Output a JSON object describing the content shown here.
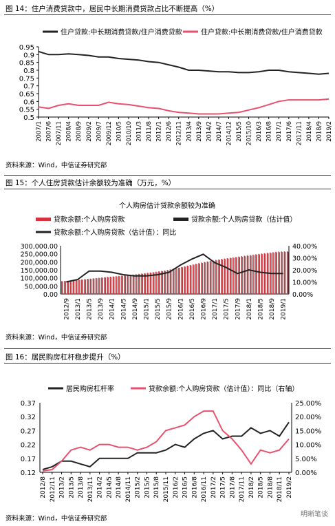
{
  "chart_data": [
    {
      "type": "line",
      "title": "图 14：住户消费贷款中，居民中长期消费贷款占比不断提高（%）",
      "source": "资料来源：Wind，中信证券研究部",
      "x": [
        "2007/1",
        "2007/6",
        "2007/11",
        "2008/4",
        "2008/9",
        "2009/2",
        "2009/7",
        "2009/12",
        "2010/5",
        "2010/10",
        "2011/3",
        "2011/8",
        "2012/1",
        "2012/6",
        "2012/11",
        "2013/4",
        "2013/9",
        "2014/2",
        "2014/7",
        "2014/12",
        "2015/5",
        "2015/10",
        "2016/3",
        "2016/8",
        "2017/1",
        "2017/6",
        "2017/11",
        "2018/4",
        "2018/9",
        "2019/2"
      ],
      "ylim": [
        0.5,
        0.95
      ],
      "yticks": [
        0.5,
        0.55,
        0.6,
        0.65,
        0.7,
        0.75,
        0.8,
        0.85,
        0.9,
        0.95
      ],
      "series": [
        {
          "name": "住户贷款:中长期消费贷款/住户消费贷款",
          "color": "#222222",
          "values": [
            0.92,
            0.9,
            0.9,
            0.905,
            0.9,
            0.895,
            0.885,
            0.885,
            0.875,
            0.87,
            0.865,
            0.855,
            0.85,
            0.835,
            0.82,
            0.8,
            0.8,
            0.795,
            0.79,
            0.79,
            0.785,
            0.785,
            0.79,
            0.8,
            0.8,
            0.79,
            0.785,
            0.78,
            0.775,
            0.78
          ]
        },
        {
          "name": "住户贷款:中长期消费贷款/住户消费贷款",
          "color": "#e8506e",
          "values": [
            0.565,
            0.555,
            0.575,
            0.585,
            0.575,
            0.575,
            0.575,
            0.595,
            0.585,
            0.58,
            0.57,
            0.56,
            0.555,
            0.54,
            0.53,
            0.525,
            0.52,
            0.52,
            0.52,
            0.525,
            0.53,
            0.545,
            0.56,
            0.58,
            0.6,
            0.61,
            0.61,
            0.61,
            0.61,
            0.615
          ]
        }
      ]
    },
    {
      "type": "bar",
      "title": "图 15：个人住房贷款估计余额较为准确（万元，%）",
      "subtitle": "个人购房估计贷款余额较为准确",
      "source": "资料来源：Wind，中信证券研究部",
      "categories": [
        "2012/9",
        "2013/1",
        "2013/5",
        "2013/9",
        "2014/1",
        "2014/5",
        "2014/9",
        "2015/1",
        "2015/5",
        "2015/9",
        "2016/1",
        "2016/5",
        "2016/9",
        "2017/1",
        "2017/5",
        "2017/9",
        "2018/1",
        "2018/5",
        "2018/9",
        "2019/1"
      ],
      "ylim": [
        0,
        300000
      ],
      "yticks_left": [
        "0.00",
        "50,000.00",
        "100,000.00",
        "150,000.00",
        "200,000.00",
        "250,000.00",
        "300,000.00"
      ],
      "ylim_right": [
        0,
        40
      ],
      "yticks_right": [
        "0.00%",
        "10.00%",
        "20.00%",
        "30.00%",
        "40.00%"
      ],
      "series": [
        {
          "name": "贷款余额:个人购房贷款",
          "color": "#d6333c",
          "type": "bar",
          "values": [
            80000,
            85000,
            92000,
            99000,
            106000,
            112000,
            119000,
            127000,
            136000,
            146000,
            160000,
            176000,
            192000,
            206000,
            218000,
            228000,
            238000,
            247000,
            256000,
            264000
          ]
        },
        {
          "name": "贷款余额:个人购房贷款（估计值）",
          "color": "#222222",
          "type": "bar-thin",
          "values": [
            80000,
            85000,
            92000,
            99000,
            106000,
            112000,
            119000,
            127000,
            136000,
            146000,
            160000,
            176000,
            192000,
            206000,
            218000,
            228000,
            238000,
            247000,
            256000,
            264000
          ]
        },
        {
          "name": "贷款余额:个人购房贷款（估计值）：同比",
          "color": "#222222",
          "type": "line",
          "values": [
            10,
            12,
            19,
            19,
            18,
            16,
            15,
            15,
            16,
            18,
            24,
            29,
            33,
            26,
            22,
            17,
            20,
            18,
            17,
            17
          ]
        }
      ]
    },
    {
      "type": "line",
      "title": "图 16：居民购房杠杆稳步提升（%）",
      "source": "资料来源：Wind，中信证券研究部",
      "x": [
        "2012/8",
        "2012/11",
        "2013/2",
        "2013/5",
        "2013/8",
        "2013/11",
        "2014/2",
        "2014/5",
        "2014/8",
        "2014/11",
        "2015/2",
        "2015/5",
        "2015/8",
        "2015/11",
        "2016/2",
        "2016/5",
        "2016/8",
        "2016/11",
        "2017/2",
        "2017/5",
        "2017/8",
        "2017/11",
        "2018/2",
        "2018/5",
        "2018/8",
        "2018/11",
        "2019/2"
      ],
      "ylim": [
        0.12,
        0.37
      ],
      "yticks_left": [
        "0.12",
        "0.17",
        "0.22",
        "0.27",
        "0.32",
        "0.37"
      ],
      "ylim_right": [
        0,
        25
      ],
      "yticks_right": [
        "0.00%",
        "5.00%",
        "10.00%",
        "15.00%",
        "20.00%",
        "25.00%"
      ],
      "series": [
        {
          "name": "居民购房杠杆率",
          "color": "#222222",
          "axis": "left",
          "values": [
            0.13,
            0.14,
            0.16,
            0.16,
            0.15,
            0.14,
            0.17,
            0.17,
            0.17,
            0.17,
            0.19,
            0.19,
            0.19,
            0.2,
            0.22,
            0.21,
            0.24,
            0.26,
            0.27,
            0.24,
            0.25,
            0.25,
            0.28,
            0.26,
            0.27,
            0.25,
            0.3
          ]
        },
        {
          "name": "贷款余额:个人购房贷款（估计值）：同比（右轴）",
          "color": "#e8506e",
          "axis": "right",
          "values": [
            0.5,
            1,
            4,
            8,
            9,
            8,
            10,
            10,
            9,
            9,
            8,
            9,
            11,
            15,
            16,
            17,
            20,
            22,
            22,
            15,
            12,
            8,
            3,
            8,
            7,
            8,
            12
          ]
        }
      ]
    }
  ],
  "watermark": "明晰笔谈"
}
